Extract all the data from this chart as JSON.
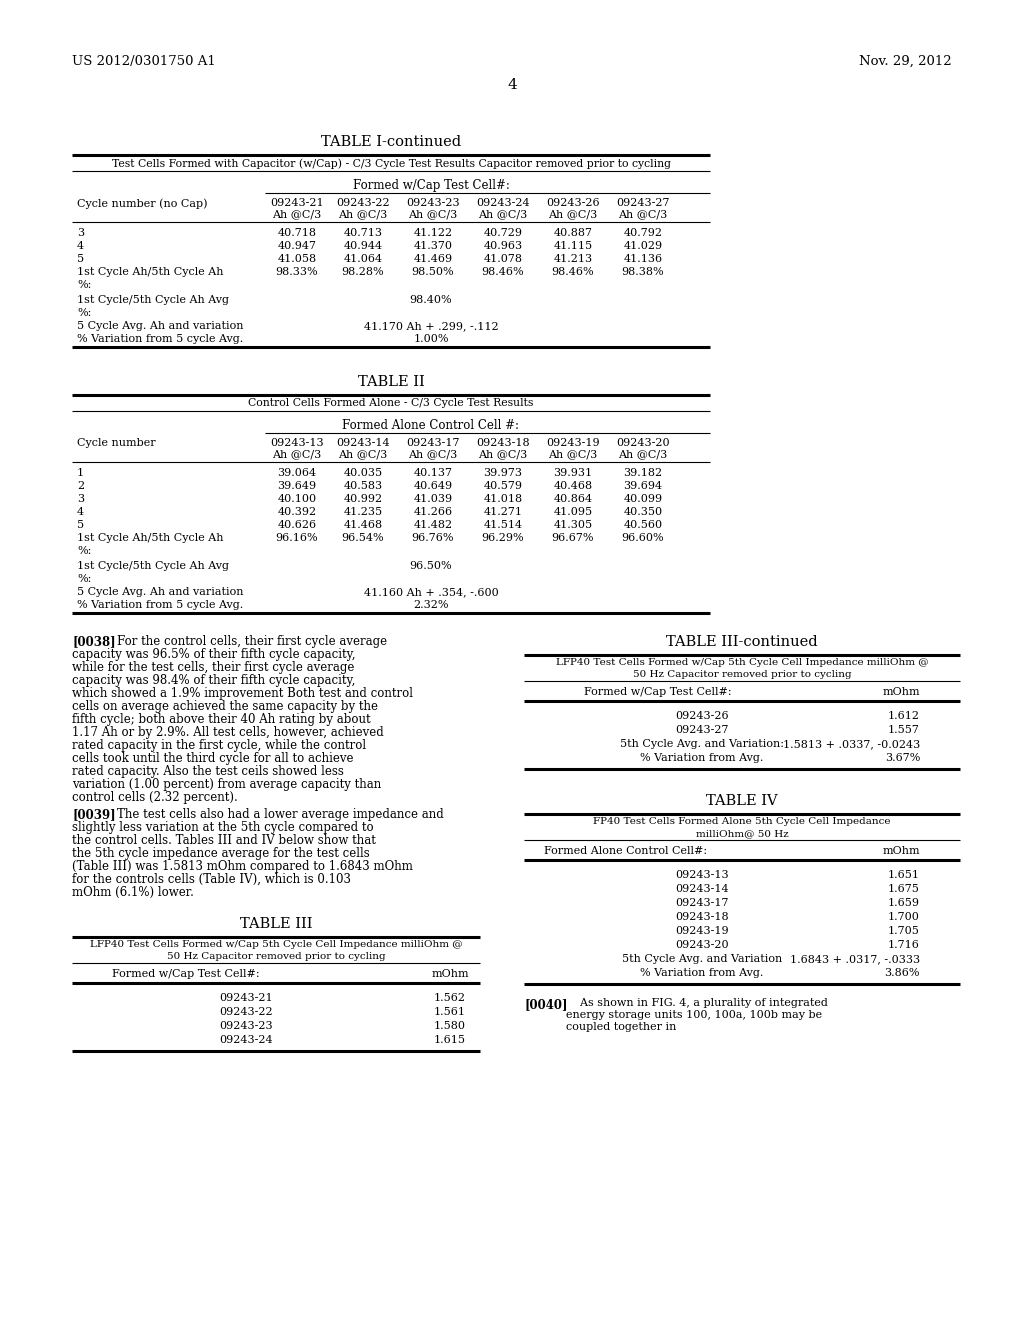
{
  "background_color": "#ffffff",
  "header_left": "US 2012/0301750 A1",
  "header_right": "Nov. 29, 2012",
  "page_number": "4",
  "t1_title": "TABLE I-continued",
  "t1_subtitle": "Test Cells Formed with Capacitor (w/Cap) - C/3 Cycle Test Results Capacitor removed prior to cycling",
  "t1_subheader": "Formed w/Cap Test Cell#:",
  "t1_col_headers_row1": [
    "09243-21",
    "09243-22",
    "09243-23",
    "09243-24",
    "09243-26",
    "09243-27"
  ],
  "t1_col_headers_row2": [
    "Ah @C/3",
    "Ah @C/3",
    "Ah @C/3",
    "Ah @C/3",
    "Ah @C/3",
    "Ah @C/3"
  ],
  "t1_row_label": "Cycle number (no Cap)",
  "t1_data_rows": [
    [
      "3",
      "40.718",
      "40.713",
      "41.122",
      "40.729",
      "40.887",
      "40.792"
    ],
    [
      "4",
      "40.947",
      "40.944",
      "41.370",
      "40.963",
      "41.115",
      "41.029"
    ],
    [
      "5",
      "41.058",
      "41.064",
      "41.469",
      "41.078",
      "41.213",
      "41.136"
    ],
    [
      "1st Cycle Ah/5th Cycle Ah",
      "98.33%",
      "98.28%",
      "98.50%",
      "98.46%",
      "98.46%",
      "98.38%"
    ],
    [
      "%:",
      "",
      "",
      "",
      "",
      "",
      ""
    ]
  ],
  "t1_span_rows": [
    [
      "1st Cycle/5th Cycle Ah Avg",
      "98.40%"
    ],
    [
      "%:",
      ""
    ],
    [
      "5 Cycle Avg. Ah and variation",
      "41.170 Ah + .299, -.112"
    ],
    [
      "% Variation from 5 cycle Avg.",
      "1.00%"
    ]
  ],
  "t2_title": "TABLE II",
  "t2_subtitle": "Control Cells Formed Alone - C/3 Cycle Test Results",
  "t2_subheader": "Formed Alone Control Cell #:",
  "t2_col_headers_row1": [
    "09243-13",
    "09243-14",
    "09243-17",
    "09243-18",
    "09243-19",
    "09243-20"
  ],
  "t2_col_headers_row2": [
    "Ah @C/3",
    "Ah @C/3",
    "Ah @C/3",
    "Ah @C/3",
    "Ah @C/3",
    "Ah @C/3"
  ],
  "t2_row_label": "Cycle number",
  "t2_data_rows": [
    [
      "1",
      "39.064",
      "40.035",
      "40.137",
      "39.973",
      "39.931",
      "39.182"
    ],
    [
      "2",
      "39.649",
      "40.583",
      "40.649",
      "40.579",
      "40.468",
      "39.694"
    ],
    [
      "3",
      "40.100",
      "40.992",
      "41.039",
      "41.018",
      "40.864",
      "40.099"
    ],
    [
      "4",
      "40.392",
      "41.235",
      "41.266",
      "41.271",
      "41.095",
      "40.350"
    ],
    [
      "5",
      "40.626",
      "41.468",
      "41.482",
      "41.514",
      "41.305",
      "40.560"
    ],
    [
      "1st Cycle Ah/5th Cycle Ah",
      "96.16%",
      "96.54%",
      "96.76%",
      "96.29%",
      "96.67%",
      "96.60%"
    ],
    [
      "%:",
      "",
      "",
      "",
      "",
      "",
      ""
    ]
  ],
  "t2_span_rows": [
    [
      "1st Cycle/5th Cycle Ah Avg",
      "96.50%"
    ],
    [
      "%:",
      ""
    ],
    [
      "5 Cycle Avg. Ah and variation",
      "41.160 Ah + .354, -.600"
    ],
    [
      "% Variation from 5 cycle Avg.",
      "2.32%"
    ]
  ],
  "para_0038": "For the control cells, their first cycle average capacity was 96.5% of their fifth cycle capacity, while for the test cells, their first cycle average capacity was 98.4% of their fifth cycle capacity, which showed a 1.9% improvement Both test and control cells on average achieved the same capacity by the fifth cycle; both above their 40 Ah rating by about 1.17 Ah or by 2.9%. All test cells, however, achieved rated capacity in the first cycle, while the control cells took until the third cycle for all to achieve rated capacity. Also the test ceils showed less variation (1.00 percent) from average capacity than control cells (2.32 percent).",
  "para_0039": "The test cells also had a lower average impedance and slightly less variation at the 5th cycle compared to the control cells. Tables III and IV below show that the 5th cycle impedance average for the test cells (Table III) was 1.5813 mOhm compared to 1.6843 mOhm for the controls cells (Table IV), which is 0.103 mOhm (6.1%) lower.",
  "t3_title": "TABLE III",
  "t3_subtitle1": "LFP40 Test Cells Formed w/Cap 5th Cycle Cell Impedance milliOhm @",
  "t3_subtitle2": "50 Hz Capacitor removed prior to cycling",
  "t3_col1": "Formed w/Cap Test Cell#:",
  "t3_col2": "mOhm",
  "t3_rows": [
    [
      "09243-21",
      "1.562"
    ],
    [
      "09243-22",
      "1.561"
    ],
    [
      "09243-23",
      "1.580"
    ],
    [
      "09243-24",
      "1.615"
    ]
  ],
  "t3c_title": "TABLE III-continued",
  "t3c_subtitle1": "LFP40 Test Cells Formed w/Cap 5th Cycle Cell Impedance milliOhm @",
  "t3c_subtitle2": "50 Hz Capacitor removed prior to cycling",
  "t3c_col1": "Formed w/Cap Test Cell#:",
  "t3c_col2": "mOhm",
  "t3c_rows": [
    [
      "09243-26",
      "1.612"
    ],
    [
      "09243-27",
      "1.557"
    ],
    [
      "5th Cycle Avg. and Variation:",
      "1.5813 + .0337, -0.0243"
    ],
    [
      "% Variation from Avg.",
      "3.67%"
    ]
  ],
  "t4_title": "TABLE IV",
  "t4_subtitle1": "FP40 Test Cells Formed Alone 5th Cycle Cell Impedance",
  "t4_subtitle2": "milliOhm@ 50 Hz",
  "t4_col1": "Formed Alone Control Cell#:",
  "t4_col2": "mOhm",
  "t4_rows": [
    [
      "09243-13",
      "1.651"
    ],
    [
      "09243-14",
      "1.675"
    ],
    [
      "09243-17",
      "1.659"
    ],
    [
      "09243-18",
      "1.700"
    ],
    [
      "09243-19",
      "1.705"
    ],
    [
      "09243-20",
      "1.716"
    ],
    [
      "5th Cycle Avg. and Variation",
      "1.6843 + .0317, -.0333"
    ],
    [
      "% Variation from Avg.",
      "3.86%"
    ]
  ],
  "para_0040": "As shown in FIG. 4, a plurality of integrated energy storage units 100, 100a, 100b may be coupled together in"
}
